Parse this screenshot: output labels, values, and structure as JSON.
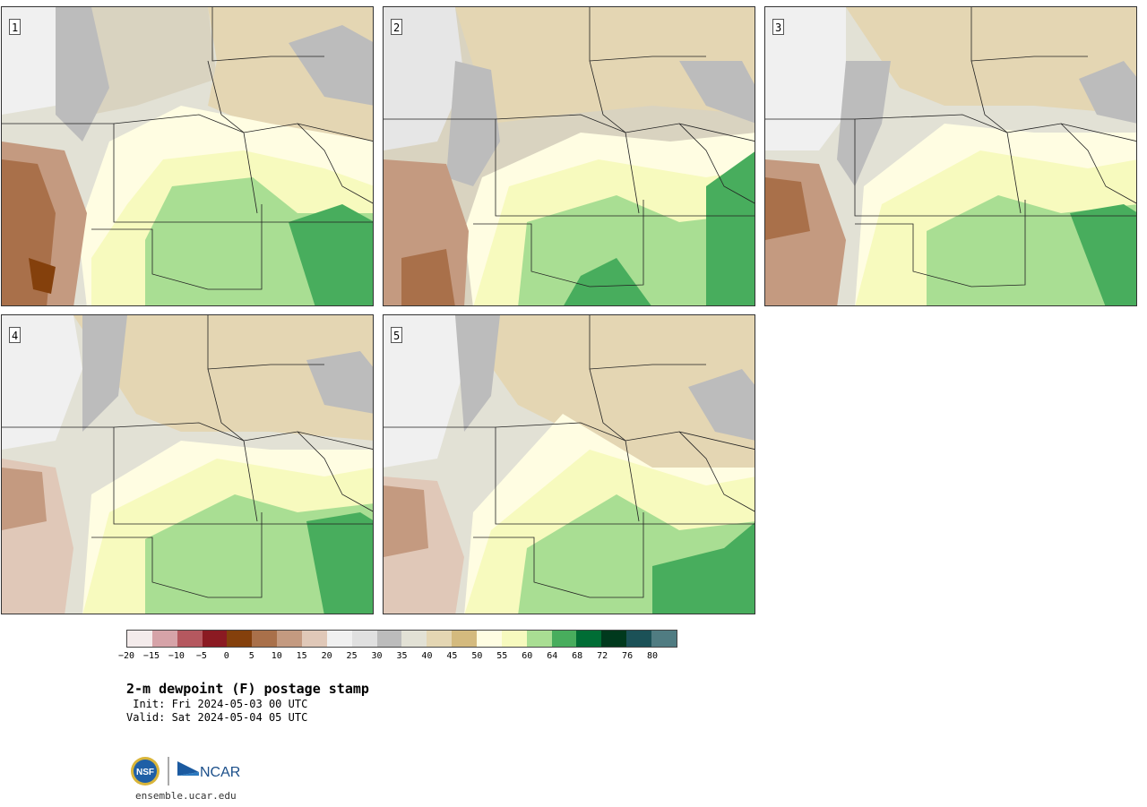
{
  "panels": [
    {
      "label": "1"
    },
    {
      "label": "2"
    },
    {
      "label": "3"
    },
    {
      "label": "4"
    },
    {
      "label": "5"
    }
  ],
  "colorbar": {
    "colors": [
      "#f4ebeb",
      "#d6a3a8",
      "#b5585f",
      "#8b1a22",
      "#84400c",
      "#a9704a",
      "#c49a80",
      "#e0c8b8",
      "#f0f0f0",
      "#e0e0e0",
      "#bcbcbc",
      "#e2e1d5",
      "#e4d6b3",
      "#d4ba7e",
      "#fffde2",
      "#f7fabe",
      "#a9de93",
      "#48ad5d",
      "#006d35",
      "#00391d",
      "#1b5157",
      "#507c82"
    ],
    "tick_labels": [
      "−20",
      "−15",
      "−10",
      "−5",
      "0",
      "5",
      "10",
      "15",
      "20",
      "25",
      "30",
      "35",
      "40",
      "45",
      "50",
      "55",
      "60",
      "64",
      "68",
      "72",
      "76",
      "80"
    ]
  },
  "title": "2-m dewpoint (F) postage stamp",
  "init": " Init: Fri 2024-05-03 00 UTC",
  "valid": "Valid: Sat 2024-05-04 05 UTC",
  "logos": {
    "nsf": "NSF",
    "ncar": "NCAR"
  },
  "url": "ensemble.ucar.edu"
}
